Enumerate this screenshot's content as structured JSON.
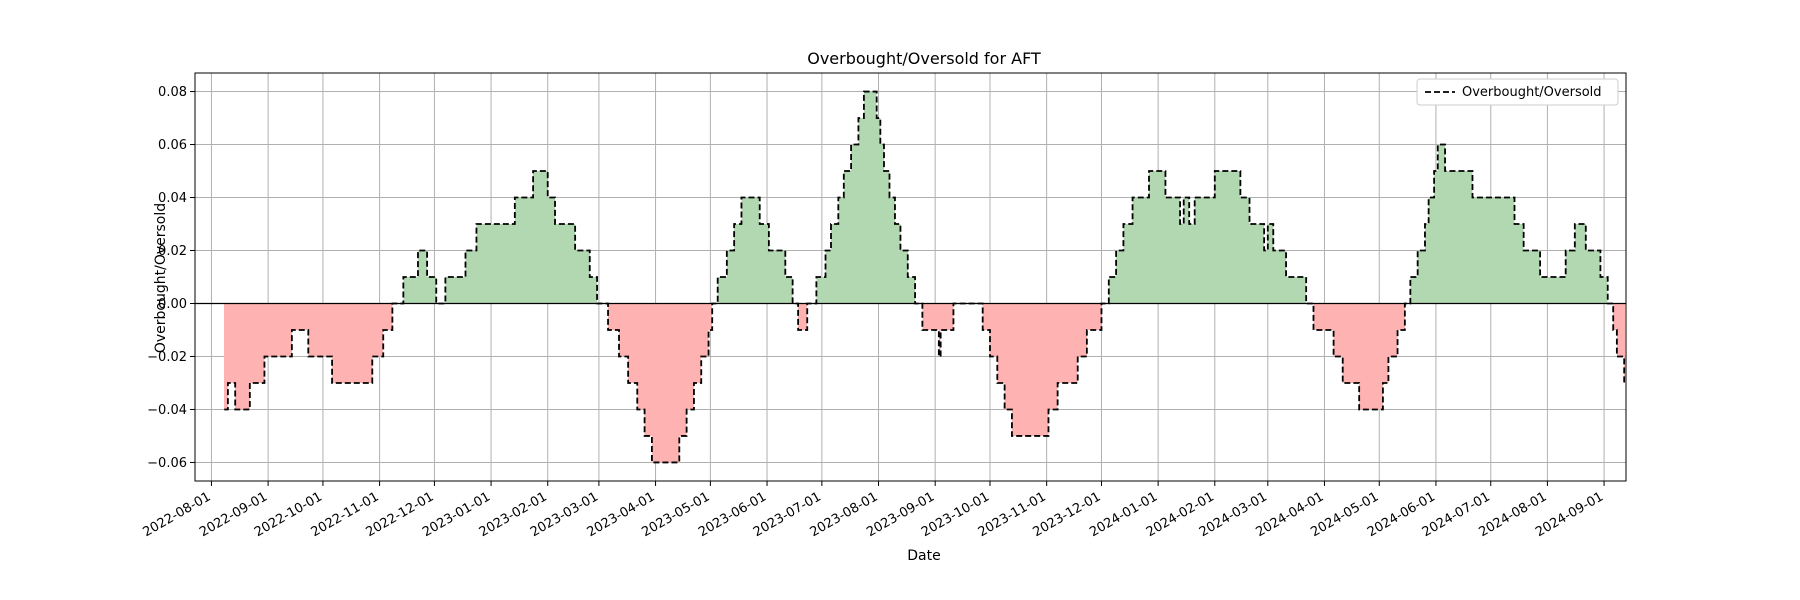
{
  "chart_data": {
    "type": "area",
    "title": "Overbought/Oversold for AFT",
    "xlabel": "Date",
    "ylabel": "Overbought/Oversold",
    "x_ticks": [
      "2022-08-01",
      "2022-09-01",
      "2022-10-01",
      "2022-11-01",
      "2022-12-01",
      "2023-01-01",
      "2023-02-01",
      "2023-03-01",
      "2023-04-01",
      "2023-05-01",
      "2023-06-01",
      "2023-07-01",
      "2023-08-01",
      "2023-09-01",
      "2023-10-01",
      "2023-11-01",
      "2023-12-01",
      "2024-01-01",
      "2024-02-01",
      "2024-03-01",
      "2024-04-01",
      "2024-05-01",
      "2024-06-01",
      "2024-07-01",
      "2024-08-01",
      "2024-09-01"
    ],
    "y_ticks": [
      "−0.06",
      "−0.04",
      "−0.02",
      "0.00",
      "0.02",
      "0.04",
      "0.06",
      "0.08"
    ],
    "xlim": [
      "2022-07-23",
      "2024-09-13"
    ],
    "ylim": [
      -0.067,
      0.087
    ],
    "grid": true,
    "legend": {
      "position": "top-right",
      "entries": [
        "Overbought/Oversold"
      ]
    },
    "colors": {
      "positive_fill": "#b2d8b2",
      "negative_fill": "#ffb2b2",
      "line": "#000000",
      "zero_line": "#000000",
      "grid": "#b0b0b0"
    },
    "series": [
      {
        "name": "Overbought/Oversold",
        "style": "dashed-step",
        "points": [
          [
            "2022-08-08",
            -0.04
          ],
          [
            "2022-08-10",
            -0.03
          ],
          [
            "2022-08-14",
            -0.04
          ],
          [
            "2022-08-22",
            -0.03
          ],
          [
            "2022-08-30",
            -0.02
          ],
          [
            "2022-09-14",
            -0.01
          ],
          [
            "2022-09-23",
            -0.02
          ],
          [
            "2022-10-06",
            -0.03
          ],
          [
            "2022-10-28",
            -0.02
          ],
          [
            "2022-11-03",
            -0.01
          ],
          [
            "2022-11-08",
            0.0
          ],
          [
            "2022-11-14",
            0.01
          ],
          [
            "2022-11-22",
            0.02
          ],
          [
            "2022-11-27",
            0.01
          ],
          [
            "2022-12-02",
            0.0
          ],
          [
            "2022-12-07",
            0.01
          ],
          [
            "2022-12-18",
            0.02
          ],
          [
            "2022-12-24",
            0.03
          ],
          [
            "2023-01-14",
            0.04
          ],
          [
            "2023-01-24",
            0.05
          ],
          [
            "2023-02-01",
            0.04
          ],
          [
            "2023-02-05",
            0.03
          ],
          [
            "2023-02-16",
            0.02
          ],
          [
            "2023-02-24",
            0.01
          ],
          [
            "2023-02-28",
            0.0
          ],
          [
            "2023-03-06",
            -0.01
          ],
          [
            "2023-03-12",
            -0.02
          ],
          [
            "2023-03-17",
            -0.03
          ],
          [
            "2023-03-22",
            -0.04
          ],
          [
            "2023-03-26",
            -0.05
          ],
          [
            "2023-03-30",
            -0.06
          ],
          [
            "2023-04-14",
            -0.05
          ],
          [
            "2023-04-18",
            -0.04
          ],
          [
            "2023-04-22",
            -0.03
          ],
          [
            "2023-04-26",
            -0.02
          ],
          [
            "2023-04-30",
            -0.01
          ],
          [
            "2023-05-02",
            0.0
          ],
          [
            "2023-05-05",
            0.01
          ],
          [
            "2023-05-10",
            0.02
          ],
          [
            "2023-05-14",
            0.03
          ],
          [
            "2023-05-18",
            0.04
          ],
          [
            "2023-05-28",
            0.03
          ],
          [
            "2023-06-02",
            0.02
          ],
          [
            "2023-06-11",
            0.01
          ],
          [
            "2023-06-15",
            0.0
          ],
          [
            "2023-06-18",
            -0.01
          ],
          [
            "2023-06-23",
            0.0
          ],
          [
            "2023-06-28",
            0.01
          ],
          [
            "2023-07-03",
            0.02
          ],
          [
            "2023-07-06",
            0.03
          ],
          [
            "2023-07-10",
            0.04
          ],
          [
            "2023-07-13",
            0.05
          ],
          [
            "2023-07-17",
            0.06
          ],
          [
            "2023-07-21",
            0.07
          ],
          [
            "2023-07-24",
            0.08
          ],
          [
            "2023-07-31",
            0.07
          ],
          [
            "2023-08-02",
            0.06
          ],
          [
            "2023-08-04",
            0.05
          ],
          [
            "2023-08-07",
            0.04
          ],
          [
            "2023-08-10",
            0.03
          ],
          [
            "2023-08-13",
            0.02
          ],
          [
            "2023-08-17",
            0.01
          ],
          [
            "2023-08-21",
            0.0
          ],
          [
            "2023-08-25",
            -0.01
          ],
          [
            "2023-09-03",
            -0.02
          ],
          [
            "2023-09-04",
            -0.01
          ],
          [
            "2023-09-11",
            0.0
          ],
          [
            "2023-09-27",
            -0.01
          ],
          [
            "2023-10-01",
            -0.02
          ],
          [
            "2023-10-05",
            -0.03
          ],
          [
            "2023-10-09",
            -0.04
          ],
          [
            "2023-10-13",
            -0.05
          ],
          [
            "2023-11-02",
            -0.04
          ],
          [
            "2023-11-07",
            -0.03
          ],
          [
            "2023-11-18",
            -0.02
          ],
          [
            "2023-11-23",
            -0.01
          ],
          [
            "2023-12-01",
            0.0
          ],
          [
            "2023-12-05",
            0.01
          ],
          [
            "2023-12-09",
            0.02
          ],
          [
            "2023-12-13",
            0.03
          ],
          [
            "2023-12-18",
            0.04
          ],
          [
            "2023-12-27",
            0.05
          ],
          [
            "2024-01-05",
            0.04
          ],
          [
            "2024-01-13",
            0.03
          ],
          [
            "2024-01-15",
            0.04
          ],
          [
            "2024-01-18",
            0.03
          ],
          [
            "2024-01-21",
            0.04
          ],
          [
            "2024-02-01",
            0.05
          ],
          [
            "2024-02-15",
            0.04
          ],
          [
            "2024-02-20",
            0.03
          ],
          [
            "2024-02-28",
            0.02
          ],
          [
            "2024-03-01",
            0.03
          ],
          [
            "2024-03-04",
            0.02
          ],
          [
            "2024-03-11",
            0.01
          ],
          [
            "2024-03-22",
            0.0
          ],
          [
            "2024-03-26",
            -0.01
          ],
          [
            "2024-04-06",
            -0.02
          ],
          [
            "2024-04-11",
            -0.03
          ],
          [
            "2024-04-20",
            -0.04
          ],
          [
            "2024-05-03",
            -0.03
          ],
          [
            "2024-05-06",
            -0.02
          ],
          [
            "2024-05-11",
            -0.01
          ],
          [
            "2024-05-15",
            0.0
          ],
          [
            "2024-05-18",
            0.01
          ],
          [
            "2024-05-22",
            0.02
          ],
          [
            "2024-05-26",
            0.03
          ],
          [
            "2024-05-28",
            0.04
          ],
          [
            "2024-05-31",
            0.05
          ],
          [
            "2024-06-02",
            0.06
          ],
          [
            "2024-06-06",
            0.05
          ],
          [
            "2024-06-21",
            0.04
          ],
          [
            "2024-07-14",
            0.03
          ],
          [
            "2024-07-19",
            0.02
          ],
          [
            "2024-07-28",
            0.01
          ],
          [
            "2024-08-11",
            0.02
          ],
          [
            "2024-08-16",
            0.03
          ],
          [
            "2024-08-22",
            0.02
          ],
          [
            "2024-08-30",
            0.01
          ],
          [
            "2024-09-03",
            0.0
          ],
          [
            "2024-09-06",
            -0.01
          ],
          [
            "2024-09-08",
            -0.02
          ],
          [
            "2024-09-12",
            -0.03
          ]
        ]
      }
    ]
  }
}
